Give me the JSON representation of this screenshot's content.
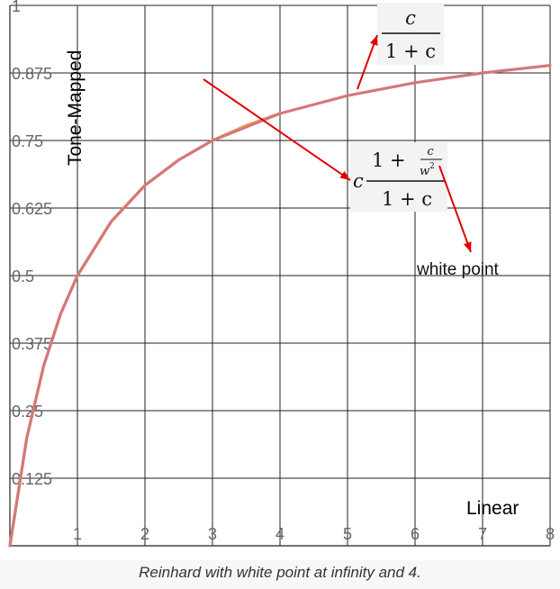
{
  "chart_data": {
    "type": "line",
    "xlabel": "Linear",
    "ylabel": "Tone-Mapped",
    "xlim": [
      0,
      8
    ],
    "ylim": [
      0,
      1
    ],
    "x_ticks": [
      "1",
      "2",
      "3",
      "4",
      "5",
      "6",
      "7",
      "8"
    ],
    "y_ticks": [
      "0.125",
      "0.25",
      "0.375",
      "0.5",
      "0.625",
      "0.75",
      "0.875",
      "1"
    ],
    "grid": true,
    "series": [
      {
        "color": "#f3a35e",
        "x": [
          0,
          0.25,
          0.5,
          0.75,
          1,
          1.5,
          2,
          2.5,
          3,
          3.5,
          4
        ],
        "y": [
          0,
          0.2,
          0.333,
          0.429,
          0.5,
          0.6,
          0.667,
          0.714,
          0.75,
          0.778,
          0.8
        ]
      },
      {
        "color": "#d47878",
        "x": [
          0,
          0.25,
          0.5,
          0.75,
          1,
          1.5,
          2,
          2.5,
          3,
          4,
          5,
          6,
          7,
          8
        ],
        "y": [
          0,
          0.2,
          0.333,
          0.429,
          0.5,
          0.6,
          0.667,
          0.714,
          0.75,
          0.8,
          0.833,
          0.857,
          0.875,
          0.889
        ]
      }
    ],
    "annotations": {
      "formula_1": {
        "numerator": "c",
        "denominator": "1 + c"
      },
      "formula_2": {
        "prefix": "c",
        "numerator_a": "1 +",
        "numerator_c": "c",
        "numerator_w": "w",
        "numerator_exp": "2",
        "denominator": "1 + c"
      },
      "label": "white point"
    },
    "colors": {
      "arrow": "#e00000"
    }
  },
  "caption": "Reinhard with white point at infinity and 4."
}
